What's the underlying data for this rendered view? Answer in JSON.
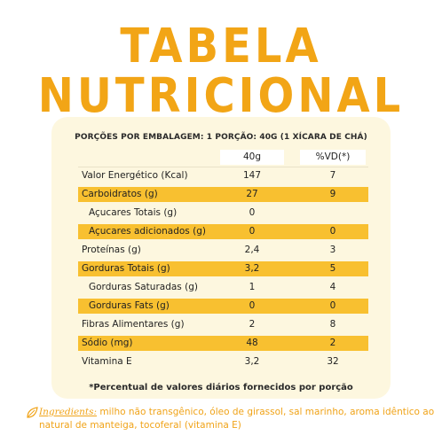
{
  "title": {
    "line1": "TABELA",
    "line2": "NUTRICIONAL"
  },
  "portion": "PORÇÕES POR EMBALAGEM: 1 PORÇÃO: 40G (1 XÍCARA DE CHÁ)",
  "columns": {
    "amount": "40g",
    "vd": "%VD(*)"
  },
  "rows": [
    {
      "label": "Valor Energético (Kcal)",
      "amount": "147",
      "vd": "7"
    },
    {
      "label": "Carboidratos (g)",
      "amount": "27",
      "vd": "9"
    },
    {
      "label": "Açucares Totais (g)",
      "amount": "0",
      "vd": ""
    },
    {
      "label": "Açucares adicionados (g)",
      "amount": "0",
      "vd": "0"
    },
    {
      "label": "Proteínas (g)",
      "amount": "2,4",
      "vd": "3"
    },
    {
      "label": "Gorduras Totais (g)",
      "amount": "3,2",
      "vd": "5"
    },
    {
      "label": "Gorduras Saturadas (g)",
      "amount": "1",
      "vd": "4"
    },
    {
      "label": "Gorduras Fats (g)",
      "amount": "0",
      "vd": "0"
    },
    {
      "label": "Fibras Alimentares (g)",
      "amount": "2",
      "vd": "8"
    },
    {
      "label": "Sódio (mg)",
      "amount": "48",
      "vd": "2"
    },
    {
      "label": "Vitamina E",
      "amount": "3,2",
      "vd": "32"
    }
  ],
  "footnote": "*Percentual de valores diários fornecidos por porção",
  "ingredients": {
    "heading": "Ingredients:",
    "text": " milho não transgênico, óleo de girassol, sal marinho, aroma idêntico ao natural de manteiga, tocoferal (vitamina E)"
  },
  "colors": {
    "accent": "#f2a516",
    "highlight": "#f8c030",
    "panel": "#fdf7df"
  }
}
